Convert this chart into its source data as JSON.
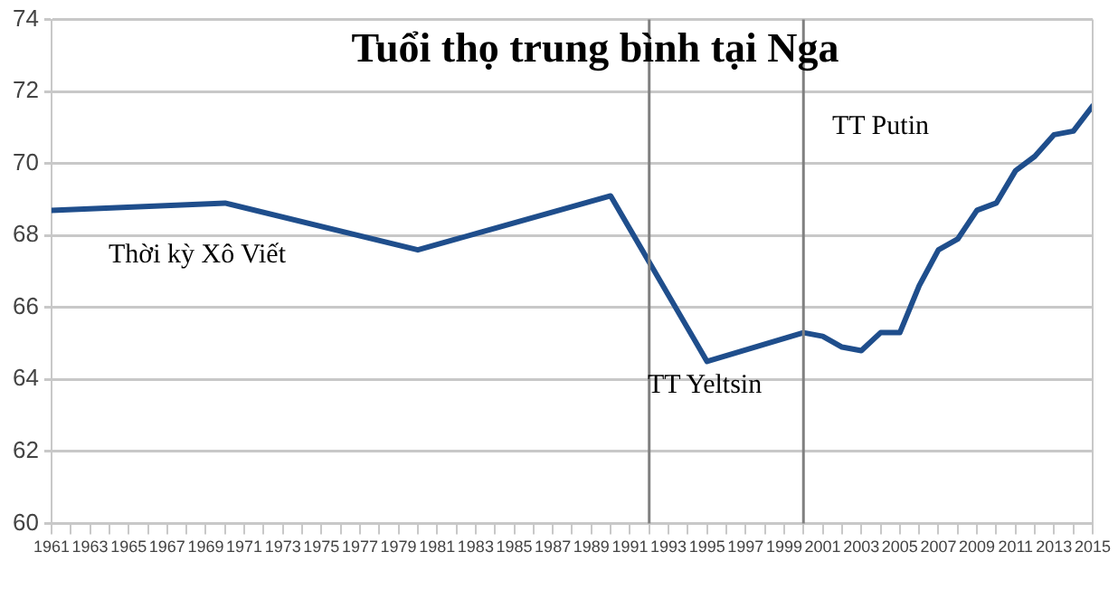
{
  "chart_data": {
    "type": "line",
    "title": "Tuổi thọ trung bình tại Nga",
    "annotations": [
      "Thời kỳ Xô Viết",
      "TT Yeltsin",
      "TT Putin"
    ],
    "x": [
      1961,
      1970,
      1980,
      1990,
      1995,
      2000,
      2001,
      2002,
      2003,
      2004,
      2005,
      2006,
      2007,
      2008,
      2009,
      2010,
      2011,
      2012,
      2013,
      2014,
      2015
    ],
    "series": [
      {
        "color": "#1f4e8c",
        "values": [
          68.7,
          68.9,
          67.6,
          69.1,
          64.5,
          65.3,
          65.2,
          64.9,
          64.8,
          65.3,
          65.3,
          66.6,
          67.6,
          67.9,
          68.7,
          68.9,
          69.8,
          70.2,
          70.8,
          70.9,
          71.6
        ]
      }
    ],
    "xlim": [
      1961,
      2015
    ],
    "xticks": [
      1961,
      {
        "value": 1962,
        "label": null
      },
      1963,
      {
        "value": 1964,
        "label": null
      },
      1965,
      {
        "value": 1966,
        "label": null
      },
      1967,
      {
        "value": 1968,
        "label": null
      },
      1969,
      {
        "value": 1970,
        "label": null
      },
      1971,
      {
        "value": 1972,
        "label": null
      },
      1973,
      {
        "value": 1974,
        "label": null
      },
      1975,
      {
        "value": 1976,
        "label": null
      },
      1977,
      {
        "value": 1978,
        "label": null
      },
      1979,
      {
        "value": 1980,
        "label": null
      },
      1981,
      {
        "value": 1982,
        "label": null
      },
      1983,
      {
        "value": 1984,
        "label": null
      },
      1985,
      {
        "value": 1986,
        "label": null
      },
      1987,
      {
        "value": 1988,
        "label": null
      },
      1989,
      {
        "value": 1990,
        "label": null
      },
      1991,
      {
        "value": 1992,
        "label": null
      },
      1993,
      {
        "value": 1994,
        "label": null
      },
      1995,
      {
        "value": 1996,
        "label": null
      },
      1997,
      {
        "value": 1998,
        "label": null
      },
      1999,
      {
        "value": 2000,
        "label": null
      },
      2001,
      {
        "value": 2002,
        "label": null
      },
      2003,
      {
        "value": 2004,
        "label": null
      },
      2005,
      {
        "value": 2006,
        "label": null
      },
      2007,
      {
        "value": 2008,
        "label": null
      },
      2009,
      {
        "value": 2010,
        "label": null
      },
      2011,
      {
        "value": 2012,
        "label": null
      },
      2013,
      {
        "value": 2014,
        "label": null
      },
      2015
    ],
    "ylim": [
      60,
      74
    ],
    "yticks": [
      60,
      62,
      64,
      66,
      68,
      70,
      72,
      74
    ],
    "ref_lines": [
      {
        "axis": "x",
        "value": 1992,
        "color": "#808080"
      },
      {
        "axis": "x",
        "value": 2000,
        "color": "#808080"
      }
    ],
    "grid": "y",
    "legend": false,
    "marker": "none",
    "line_style": "solid"
  }
}
